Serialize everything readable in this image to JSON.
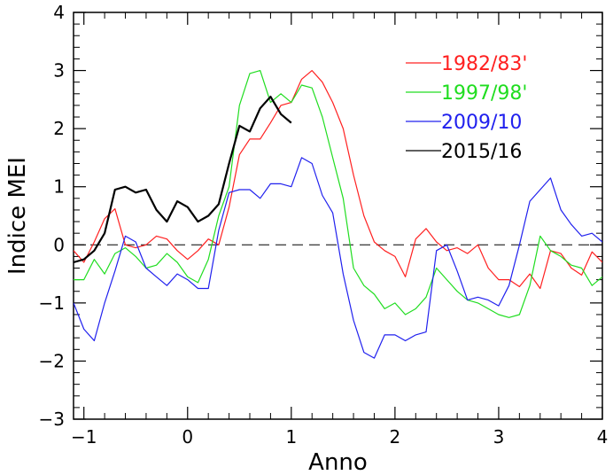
{
  "chart_data": {
    "type": "line",
    "title": "",
    "xlabel": "Anno",
    "ylabel": "Indice MEI",
    "xlim": [
      -1.1,
      4.0
    ],
    "ylim": [
      -3,
      4
    ],
    "x_ticks": [
      -1,
      0,
      1,
      2,
      3,
      4
    ],
    "y_ticks": [
      -3,
      -2,
      -1,
      0,
      1,
      2,
      3,
      4
    ],
    "x_tick_labels": [
      "−1",
      "0",
      "1",
      "2",
      "3",
      "4"
    ],
    "y_tick_labels": [
      "−3",
      "−2",
      "−1",
      "0",
      "1",
      "2",
      "3",
      "4"
    ],
    "grid": false,
    "zero_line": "dashed",
    "legend_position": "top-right",
    "series": [
      {
        "name": "1982/83'",
        "color": "#ff2020",
        "width": 1.2,
        "x": [
          -1.1,
          -1.0,
          -0.9,
          -0.8,
          -0.7,
          -0.6,
          -0.5,
          -0.4,
          -0.3,
          -0.2,
          -0.1,
          0.0,
          0.1,
          0.2,
          0.3,
          0.4,
          0.5,
          0.6,
          0.7,
          0.8,
          0.9,
          1.0,
          1.1,
          1.2,
          1.3,
          1.4,
          1.5,
          1.6,
          1.7,
          1.8,
          1.9,
          2.0,
          2.1,
          2.2,
          2.3,
          2.4,
          2.5,
          2.6,
          2.7,
          2.8,
          2.9,
          3.0,
          3.1,
          3.2,
          3.3,
          3.4,
          3.5,
          3.6,
          3.7,
          3.8,
          3.9,
          4.0
        ],
        "y": [
          -0.1,
          -0.3,
          0.05,
          0.45,
          0.62,
          0.0,
          -0.05,
          0.0,
          0.15,
          0.1,
          -0.1,
          -0.25,
          -0.1,
          0.1,
          0.0,
          0.65,
          1.55,
          1.82,
          1.82,
          2.1,
          2.4,
          2.45,
          2.85,
          3.0,
          2.8,
          2.45,
          2.0,
          1.2,
          0.5,
          0.05,
          -0.1,
          -0.2,
          -0.55,
          0.1,
          0.28,
          0.05,
          -0.1,
          -0.05,
          -0.15,
          0.0,
          -0.4,
          -0.6,
          -0.6,
          -0.72,
          -0.5,
          -0.75,
          -0.1,
          -0.15,
          -0.4,
          -0.52,
          -0.12,
          -0.3
        ]
      },
      {
        "name": "1997/98'",
        "color": "#20dd20",
        "width": 1.2,
        "x": [
          -1.1,
          -1.0,
          -0.9,
          -0.8,
          -0.7,
          -0.6,
          -0.5,
          -0.4,
          -0.3,
          -0.2,
          -0.1,
          0.0,
          0.1,
          0.2,
          0.3,
          0.4,
          0.5,
          0.6,
          0.7,
          0.8,
          0.9,
          1.0,
          1.1,
          1.2,
          1.3,
          1.4,
          1.5,
          1.6,
          1.7,
          1.8,
          1.9,
          2.0,
          2.1,
          2.2,
          2.3,
          2.4,
          2.5,
          2.6,
          2.7,
          2.8,
          2.9,
          3.0,
          3.1,
          3.2,
          3.3,
          3.4,
          3.5,
          3.6,
          3.7,
          3.8,
          3.9,
          4.0
        ],
        "y": [
          -0.6,
          -0.6,
          -0.25,
          -0.5,
          -0.15,
          -0.05,
          -0.2,
          -0.4,
          -0.35,
          -0.15,
          -0.3,
          -0.55,
          -0.65,
          -0.25,
          0.5,
          1.0,
          2.4,
          2.95,
          3.0,
          2.45,
          2.6,
          2.45,
          2.75,
          2.7,
          2.2,
          1.5,
          0.8,
          -0.4,
          -0.7,
          -0.85,
          -1.1,
          -1.0,
          -1.2,
          -1.1,
          -0.9,
          -0.4,
          -0.6,
          -0.8,
          -0.95,
          -1.0,
          -1.1,
          -1.2,
          -1.25,
          -1.2,
          -0.7,
          0.15,
          -0.1,
          -0.2,
          -0.35,
          -0.4,
          -0.7,
          -0.55
        ]
      },
      {
        "name": "2009/10",
        "color": "#2020ee",
        "width": 1.2,
        "x": [
          -1.1,
          -1.0,
          -0.9,
          -0.8,
          -0.7,
          -0.6,
          -0.5,
          -0.4,
          -0.3,
          -0.2,
          -0.1,
          0.0,
          0.1,
          0.2,
          0.3,
          0.4,
          0.5,
          0.6,
          0.7,
          0.8,
          0.9,
          1.0,
          1.1,
          1.2,
          1.3,
          1.4,
          1.5,
          1.6,
          1.7,
          1.8,
          1.9,
          2.0,
          2.1,
          2.2,
          2.3,
          2.4,
          2.5,
          2.6,
          2.7,
          2.8,
          2.9,
          3.0,
          3.1,
          3.2,
          3.3,
          3.4,
          3.5,
          3.6,
          3.7,
          3.8,
          3.9,
          4.0
        ],
        "y": [
          -1.0,
          -1.45,
          -1.65,
          -1.0,
          -0.45,
          0.15,
          0.05,
          -0.4,
          -0.55,
          -0.7,
          -0.5,
          -0.6,
          -0.75,
          -0.75,
          0.25,
          0.9,
          0.95,
          0.95,
          0.8,
          1.05,
          1.05,
          1.0,
          1.5,
          1.4,
          0.85,
          0.55,
          -0.5,
          -1.3,
          -1.85,
          -1.95,
          -1.55,
          -1.55,
          -1.65,
          -1.55,
          -1.5,
          -0.1,
          0.0,
          -0.45,
          -0.95,
          -0.9,
          -0.95,
          -1.05,
          -0.7,
          0.0,
          0.75,
          0.95,
          1.15,
          0.6,
          0.35,
          0.15,
          0.2,
          0.05
        ]
      },
      {
        "name": "2015/16",
        "color": "#000000",
        "width": 2.2,
        "x": [
          -1.1,
          -1.0,
          -0.9,
          -0.8,
          -0.7,
          -0.6,
          -0.5,
          -0.4,
          -0.3,
          -0.2,
          -0.1,
          0.0,
          0.1,
          0.2,
          0.3,
          0.4,
          0.5,
          0.6,
          0.7,
          0.8,
          0.9,
          1.0
        ],
        "y": [
          -0.3,
          -0.25,
          -0.1,
          0.2,
          0.95,
          1.0,
          0.9,
          0.95,
          0.6,
          0.4,
          0.75,
          0.65,
          0.4,
          0.5,
          0.7,
          1.4,
          2.05,
          1.95,
          2.35,
          2.55,
          2.25,
          2.1
        ]
      }
    ]
  }
}
